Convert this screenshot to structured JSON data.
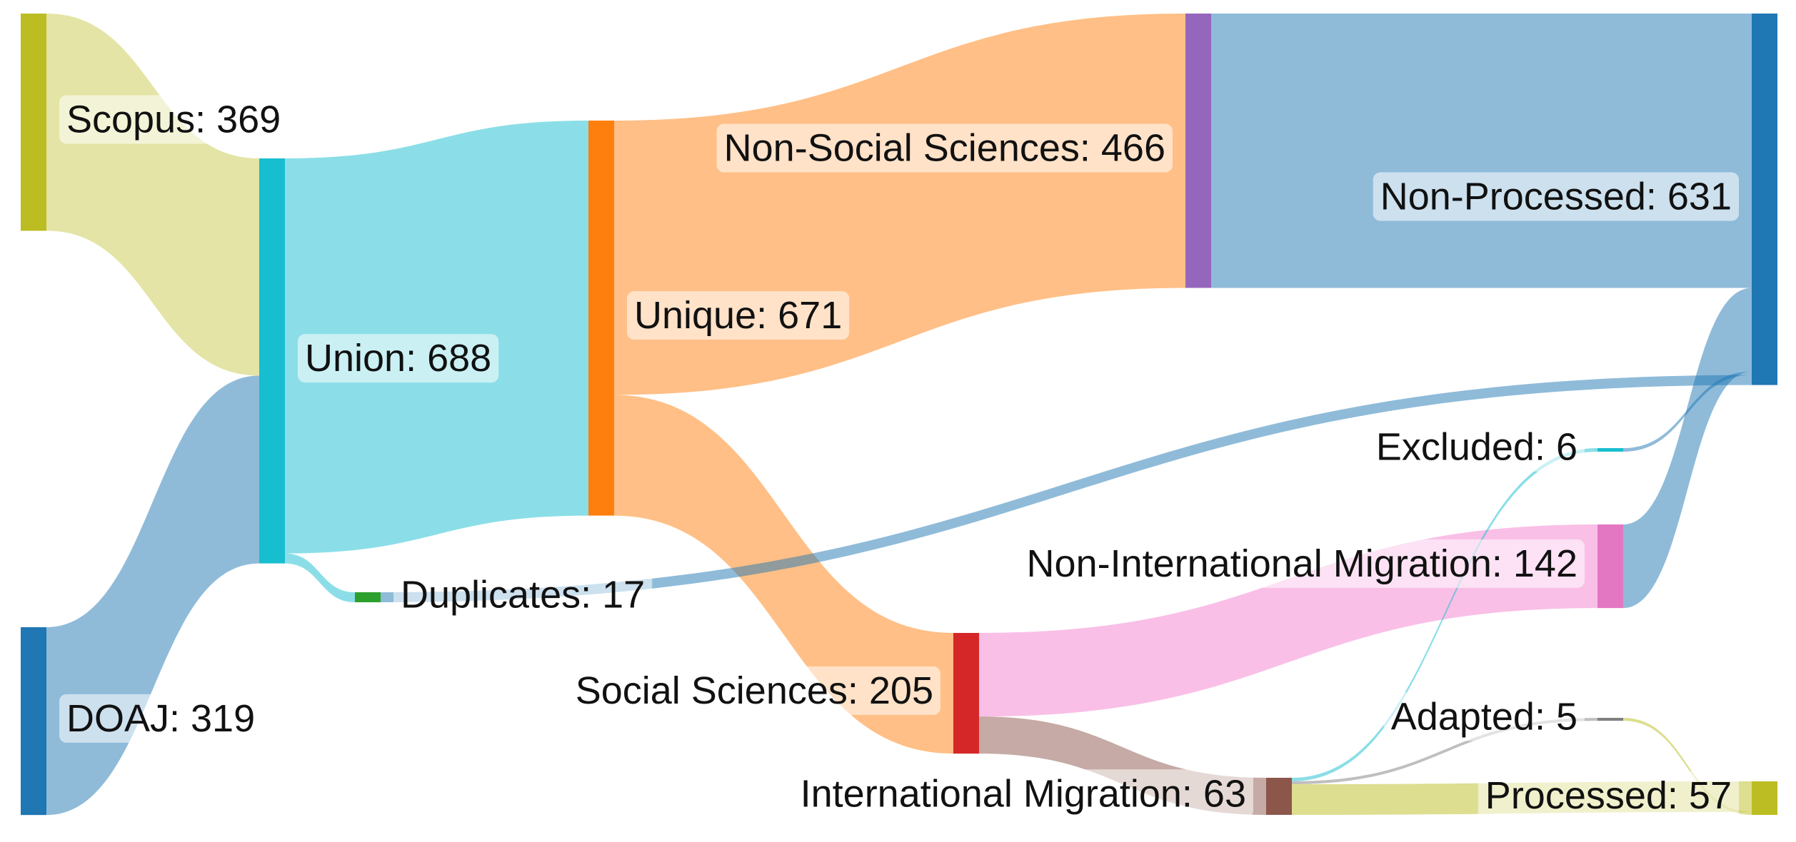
{
  "chart_data": {
    "type": "sankey",
    "nodes": [
      {
        "label": "Scopus: 369",
        "value": 369,
        "color": "#bcbd22"
      },
      {
        "label": "DOAJ: 319",
        "value": 319,
        "color": "#1f77b4"
      },
      {
        "label": "Union: 688",
        "value": 688,
        "color": "#17becf"
      },
      {
        "label": "Unique: 671",
        "value": 671,
        "color": "#ff7f0e"
      },
      {
        "label": "Duplicates: 17",
        "value": 17,
        "color": "#2ca02c"
      },
      {
        "label": "Non-Social Sciences: 466",
        "value": 466,
        "color": "#9467bd"
      },
      {
        "label": "Social Sciences: 205",
        "value": 205,
        "color": "#d62728"
      },
      {
        "label": "Non-Processed: 631",
        "value": 631,
        "color": "#1f77b4"
      },
      {
        "label": "Non-International Migration: 142",
        "value": 142,
        "color": "#e377c2"
      },
      {
        "label": "International Migration: 63",
        "value": 63,
        "color": "#8c564b"
      },
      {
        "label": "Excluded: 6",
        "value": 6,
        "color": "#17becf"
      },
      {
        "label": "Adapted: 5",
        "value": 5,
        "color": "#7f7f7f"
      },
      {
        "label": "Processed: 57",
        "value": 57,
        "color": "#bcbd22"
      }
    ],
    "links": [
      {
        "source": 0,
        "target": 2,
        "value": 369,
        "color": "#c9ca4e"
      },
      {
        "source": 1,
        "target": 2,
        "value": 319,
        "color": "#1f77b4"
      },
      {
        "source": 2,
        "target": 3,
        "value": 671,
        "color": "#17becf"
      },
      {
        "source": 2,
        "target": 4,
        "value": 17,
        "color": "#17becf"
      },
      {
        "source": 3,
        "target": 5,
        "value": 466,
        "color": "#ff7f0e"
      },
      {
        "source": 3,
        "target": 6,
        "value": 205,
        "color": "#ff7f0e"
      },
      {
        "source": 5,
        "target": 7,
        "value": 466,
        "color": "#1f77b4"
      },
      {
        "source": 6,
        "target": 8,
        "value": 142,
        "color": "#f47fd0"
      },
      {
        "source": 6,
        "target": 9,
        "value": 63,
        "color": "#8c564b"
      },
      {
        "source": 8,
        "target": 7,
        "value": 142,
        "color": "#1f77b4"
      },
      {
        "source": 9,
        "target": 10,
        "value": 6,
        "color": "#17becf"
      },
      {
        "source": 9,
        "target": 11,
        "value": 5,
        "color": "#7f7f7f"
      },
      {
        "source": 9,
        "target": 12,
        "value": 52,
        "color": "#bcbd22"
      },
      {
        "source": 10,
        "target": 7,
        "value": 6,
        "color": "#1f77b4"
      },
      {
        "source": 4,
        "target": 7,
        "value": 17,
        "color": "#1f77b4"
      },
      {
        "source": 11,
        "target": 12,
        "value": 5,
        "color": "#bcbd22"
      }
    ]
  }
}
